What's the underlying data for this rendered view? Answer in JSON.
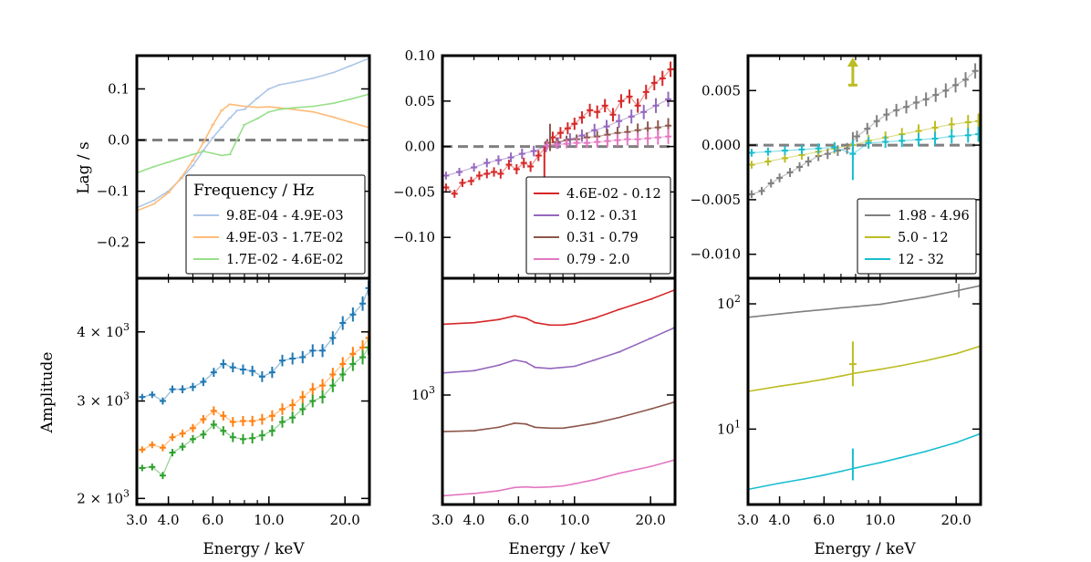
{
  "chart_data": [
    {
      "type": "line",
      "panel": "lag-low",
      "ylabel": "Lag / s",
      "ylim": [
        -0.27,
        0.165
      ],
      "xlim": [
        3.0,
        25.0
      ],
      "xscale": "log",
      "yticks": [
        -0.2,
        -0.1,
        0.0,
        0.1
      ],
      "ytick_labels": [
        "−0.2",
        "−0.1",
        "0.0",
        "0.1"
      ],
      "zero_line": true,
      "legend": {
        "title": "Frequency / Hz",
        "position": "lower-right"
      },
      "series": [
        {
          "name": "9.8E-04 - 4.9E-03",
          "color": "#aec7e8",
          "x": [
            3.0,
            3.5,
            4.0,
            4.5,
            5.0,
            5.5,
            6.0,
            6.5,
            7.0,
            7.5,
            8.0,
            9.0,
            10.0,
            11.0,
            12.5,
            15.0,
            18.0,
            21.0,
            25.0
          ],
          "y": [
            -0.132,
            -0.118,
            -0.1,
            -0.075,
            -0.05,
            -0.02,
            0.005,
            0.025,
            0.043,
            0.058,
            0.06,
            0.082,
            0.1,
            0.108,
            0.113,
            0.121,
            0.132,
            0.145,
            0.16
          ]
        },
        {
          "name": "4.9E-03 - 1.7E-02",
          "color": "#ffbb78",
          "x": [
            3.0,
            3.5,
            4.0,
            4.5,
            5.0,
            5.5,
            6.0,
            6.5,
            7.0,
            7.5,
            8.0,
            9.0,
            10.0,
            11.0,
            12.5,
            15.0,
            18.0,
            21.0,
            25.0
          ],
          "y": [
            -0.138,
            -0.125,
            -0.103,
            -0.073,
            -0.04,
            -0.005,
            0.03,
            0.058,
            0.07,
            0.068,
            0.066,
            0.064,
            0.065,
            0.063,
            0.06,
            0.055,
            0.045,
            0.035,
            0.024
          ]
        },
        {
          "name": "1.7E-02 - 4.6E-02",
          "color": "#98df8a",
          "x": [
            3.0,
            3.5,
            4.0,
            4.5,
            5.0,
            5.5,
            6.0,
            6.5,
            7.0,
            7.5,
            8.0,
            9.0,
            10.0,
            11.0,
            12.5,
            15.0,
            18.0,
            21.0,
            25.0
          ],
          "y": [
            -0.064,
            -0.052,
            -0.043,
            -0.035,
            -0.028,
            -0.022,
            -0.026,
            -0.03,
            -0.028,
            0.002,
            0.03,
            0.042,
            0.055,
            0.06,
            0.063,
            0.066,
            0.072,
            0.08,
            0.09
          ]
        }
      ]
    },
    {
      "type": "scatter",
      "panel": "lag-mid",
      "ylim": [
        -0.145,
        0.1
      ],
      "xlim": [
        3.0,
        25.0
      ],
      "xscale": "log",
      "yticks": [
        -0.1,
        -0.05,
        0.0,
        0.05,
        0.1
      ],
      "ytick_labels": [
        "−0.10",
        "−0.05",
        "0.00",
        "0.05",
        "0.10"
      ],
      "zero_line": true,
      "legend": {
        "position": "lower-right"
      },
      "series": [
        {
          "name": "4.6E-02 - 0.12",
          "color": "#d62728",
          "x": [
            3.1,
            3.35,
            3.6,
            3.9,
            4.2,
            4.5,
            4.8,
            5.1,
            5.5,
            5.9,
            6.3,
            6.7,
            7.2,
            7.7,
            8.2,
            8.8,
            9.4,
            10.0,
            10.7,
            11.5,
            12.3,
            13.2,
            14.2,
            15.3,
            16.5,
            17.8,
            19.2,
            20.7,
            22.3,
            24.0
          ],
          "y": [
            -0.045,
            -0.052,
            -0.04,
            -0.038,
            -0.032,
            -0.03,
            -0.028,
            -0.03,
            -0.02,
            -0.025,
            -0.018,
            -0.022,
            -0.01,
            0.0,
            0.01,
            0.015,
            0.02,
            0.025,
            0.032,
            0.04,
            0.038,
            0.045,
            0.035,
            0.05,
            0.055,
            0.045,
            0.06,
            0.07,
            0.075,
            0.085
          ]
        },
        {
          "name": "0.12 - 0.31",
          "color": "#9467bd",
          "x": [
            3.1,
            3.5,
            4.0,
            4.5,
            5.0,
            5.6,
            6.2,
            6.9,
            7.7,
            8.6,
            9.6,
            10.7,
            12.0,
            13.4,
            15.0,
            16.8,
            18.8,
            21.0,
            23.5
          ],
          "y": [
            -0.032,
            -0.028,
            -0.023,
            -0.018,
            -0.015,
            -0.012,
            -0.008,
            -0.005,
            0.0,
            0.004,
            0.008,
            0.012,
            0.018,
            0.022,
            0.028,
            0.033,
            0.038,
            0.045,
            0.052
          ]
        },
        {
          "name": "0.31 - 0.79",
          "color": "#8c564b",
          "x": [
            7.8,
            8.5,
            9.3,
            10.2,
            11.2,
            12.3,
            13.5,
            14.8,
            16.2,
            17.8,
            19.5,
            21.4,
            23.5
          ],
          "y": [
            0.004,
            0.005,
            0.007,
            0.008,
            0.01,
            0.011,
            0.013,
            0.015,
            0.016,
            0.018,
            0.02,
            0.021,
            0.023
          ]
        },
        {
          "name": "0.79 - 2.0",
          "color": "#e377c2",
          "x": [
            7.8,
            8.5,
            9.3,
            10.2,
            11.2,
            12.3,
            13.5,
            14.8,
            16.2,
            17.8,
            19.5,
            21.4,
            23.5
          ],
          "y": [
            0.001,
            0.002,
            0.003,
            0.004,
            0.004,
            0.005,
            0.006,
            0.007,
            0.008,
            0.008,
            0.009,
            0.01,
            0.011
          ]
        }
      ]
    },
    {
      "type": "scatter",
      "panel": "lag-high",
      "ylim": [
        -0.0122,
        0.0082
      ],
      "xlim": [
        3.0,
        25.0
      ],
      "xscale": "log",
      "yticks": [
        -0.01,
        -0.005,
        0.0,
        0.005
      ],
      "ytick_labels": [
        "−0.010",
        "−0.005",
        "0.000",
        "0.005"
      ],
      "zero_line": true,
      "legend": {
        "position": "lower-right"
      },
      "upper_limit_arrow": {
        "x": 7.8,
        "y": 0.0055,
        "color": "#bcbd22"
      },
      "series": [
        {
          "name": "1.98 - 4.96",
          "color": "#7f7f7f",
          "x": [
            3.1,
            3.4,
            3.7,
            4.0,
            4.4,
            4.8,
            5.2,
            5.7,
            6.2,
            6.8,
            7.4,
            8.1,
            8.9,
            9.7,
            10.6,
            11.6,
            12.7,
            13.9,
            15.2,
            16.6,
            18.2,
            19.9,
            21.8,
            23.8
          ],
          "y": [
            -0.0045,
            -0.0042,
            -0.0035,
            -0.003,
            -0.0025,
            -0.002,
            -0.0015,
            -0.001,
            -0.0008,
            -0.0005,
            -0.0003,
            0.0008,
            0.0015,
            0.0022,
            0.0028,
            0.0032,
            0.0035,
            0.0039,
            0.0042,
            0.0046,
            0.005,
            0.0055,
            0.006,
            0.0068
          ]
        },
        {
          "name": "5.0 - 12",
          "color": "#bcbd22",
          "x": [
            3.1,
            3.6,
            4.2,
            4.9,
            5.7,
            6.6,
            7.8,
            9.0,
            10.5,
            12.2,
            14.2,
            16.5,
            19.2,
            22.3,
            24.5
          ],
          "y": [
            -0.0018,
            -0.0015,
            -0.0012,
            -0.0009,
            -0.0006,
            -0.0003,
            0.0,
            0.0004,
            0.0007,
            0.001,
            0.0013,
            0.0016,
            0.0019,
            0.0021,
            0.0022
          ]
        },
        {
          "name": "12 - 32",
          "color": "#17becf",
          "x": [
            3.1,
            3.6,
            4.2,
            4.9,
            5.7,
            6.6,
            7.8,
            9.0,
            10.5,
            12.2,
            14.2,
            16.5,
            19.2,
            22.3,
            24.5
          ],
          "y": [
            -0.0007,
            -0.0006,
            -0.0005,
            -0.0004,
            -0.0003,
            -0.0002,
            -0.0008,
            0.0002,
            0.0003,
            0.0004,
            0.0005,
            0.0006,
            0.0008,
            0.0009,
            0.001
          ]
        }
      ]
    },
    {
      "type": "scatter",
      "panel": "amp-low",
      "ylabel": "Amplitude",
      "xlabel": "Energy / keV",
      "yscale": "log",
      "ylim": [
        1950,
        5000
      ],
      "xlim": [
        3.0,
        25.0
      ],
      "xscale": "log",
      "xticks": [
        3.0,
        4.0,
        6.0,
        10.0,
        20.0
      ],
      "xtick_labels": [
        "3.0",
        "4.0",
        "6.0",
        "10.0",
        "20.0"
      ],
      "yticks": [
        2000,
        3000,
        4000
      ],
      "ytick_labels": [
        {
          "m": "2",
          "e": "3"
        },
        {
          "m": "3",
          "e": "3"
        },
        {
          "m": "4",
          "e": "3"
        }
      ],
      "series": [
        {
          "color": "#1f77b4",
          "x": [
            3.15,
            3.45,
            3.8,
            4.15,
            4.55,
            5.0,
            5.5,
            6.05,
            6.6,
            7.2,
            7.9,
            8.6,
            9.4,
            10.3,
            11.3,
            12.4,
            13.6,
            14.9,
            16.3,
            17.9,
            19.6,
            21.5,
            23.5,
            24.8
          ],
          "y": [
            3050,
            3080,
            3000,
            3150,
            3150,
            3180,
            3250,
            3380,
            3500,
            3450,
            3420,
            3400,
            3320,
            3380,
            3550,
            3580,
            3600,
            3700,
            3700,
            3900,
            4150,
            4300,
            4500,
            4800
          ]
        },
        {
          "color": "#ff7f0e",
          "x": [
            3.15,
            3.45,
            3.8,
            4.15,
            4.55,
            5.0,
            5.5,
            6.05,
            6.6,
            7.2,
            7.9,
            8.6,
            9.4,
            10.3,
            11.3,
            12.4,
            13.6,
            14.9,
            16.3,
            17.9,
            19.6,
            21.5,
            23.5,
            24.8
          ],
          "y": [
            2450,
            2500,
            2470,
            2580,
            2620,
            2680,
            2780,
            2880,
            2820,
            2750,
            2760,
            2760,
            2780,
            2820,
            2900,
            2950,
            3050,
            3150,
            3200,
            3350,
            3500,
            3650,
            3750,
            3900
          ]
        },
        {
          "color": "#2ca02c",
          "x": [
            3.15,
            3.45,
            3.8,
            4.15,
            4.55,
            5.0,
            5.5,
            6.05,
            6.6,
            7.2,
            7.9,
            8.6,
            9.4,
            10.3,
            11.3,
            12.4,
            13.6,
            14.9,
            16.3,
            17.9,
            19.6,
            21.5,
            23.5,
            24.8
          ],
          "y": [
            2270,
            2280,
            2200,
            2420,
            2480,
            2560,
            2610,
            2720,
            2650,
            2580,
            2560,
            2570,
            2600,
            2650,
            2750,
            2800,
            2900,
            3000,
            3050,
            3200,
            3350,
            3500,
            3600,
            3750
          ]
        }
      ]
    },
    {
      "type": "line",
      "panel": "amp-mid",
      "xlabel": "Energy / keV",
      "yscale": "log",
      "ylim": [
        440,
        2400
      ],
      "xlim": [
        3.0,
        25.0
      ],
      "xscale": "log",
      "xticks": [
        3.0,
        4.0,
        6.0,
        10.0,
        20.0
      ],
      "xtick_labels": [
        "3.0",
        "4.0",
        "6.0",
        "10.0",
        "20.0"
      ],
      "yticks": [
        1000
      ],
      "ytick_labels": [
        {
          "m": "",
          "e": "3"
        }
      ],
      "series": [
        {
          "color": "#d62728",
          "x": [
            3.0,
            4.0,
            5.0,
            5.8,
            6.4,
            7.0,
            8.0,
            9.0,
            10.0,
            12.0,
            15.0,
            20.0,
            25.0
          ],
          "y": [
            1700,
            1720,
            1760,
            1810,
            1780,
            1720,
            1690,
            1690,
            1710,
            1780,
            1900,
            2050,
            2200
          ]
        },
        {
          "color": "#9467bd",
          "x": [
            3.0,
            4.0,
            5.0,
            5.8,
            6.4,
            7.0,
            8.0,
            9.0,
            10.0,
            12.0,
            15.0,
            20.0,
            25.0
          ],
          "y": [
            1180,
            1200,
            1250,
            1300,
            1280,
            1230,
            1220,
            1230,
            1240,
            1300,
            1380,
            1530,
            1660
          ]
        },
        {
          "color": "#8c564b",
          "x": [
            3.0,
            4.0,
            5.0,
            5.8,
            6.4,
            7.0,
            8.0,
            9.0,
            10.0,
            12.0,
            15.0,
            20.0,
            25.0
          ],
          "y": [
            760,
            765,
            785,
            810,
            805,
            785,
            780,
            780,
            790,
            810,
            845,
            900,
            950
          ]
        },
        {
          "color": "#e377c2",
          "x": [
            3.0,
            4.0,
            5.0,
            5.8,
            6.4,
            7.0,
            8.0,
            9.0,
            10.0,
            12.0,
            15.0,
            20.0,
            25.0
          ],
          "y": [
            470,
            478,
            488,
            500,
            502,
            500,
            502,
            506,
            514,
            530,
            556,
            585,
            615
          ]
        }
      ]
    },
    {
      "type": "line",
      "panel": "amp-high",
      "xlabel": "Energy / keV",
      "yscale": "log",
      "ylim": [
        2.5,
        160
      ],
      "xlim": [
        3.0,
        25.0
      ],
      "xscale": "log",
      "xticks": [
        3.0,
        4.0,
        6.0,
        10.0,
        20.0
      ],
      "xtick_labels": [
        "3.0",
        "4.0",
        "6.0",
        "10.0",
        "20.0"
      ],
      "yticks": [
        10,
        100
      ],
      "ytick_labels": [
        {
          "m": "",
          "e": "1"
        },
        {
          "m": "",
          "e": "2"
        }
      ],
      "series": [
        {
          "color": "#7f7f7f",
          "x": [
            3.0,
            4.0,
            5.0,
            6.0,
            7.0,
            8.0,
            10.0,
            12.0,
            15.0,
            20.0,
            25.0
          ],
          "y": [
            78,
            83,
            87,
            90,
            93,
            95,
            99,
            105,
            113,
            127,
            140
          ]
        },
        {
          "color": "#bcbd22",
          "x": [
            3.0,
            4.0,
            5.0,
            6.0,
            7.0,
            8.0,
            10.0,
            12.0,
            15.0,
            20.0,
            25.0
          ],
          "y": [
            20,
            22,
            23.5,
            25,
            26.5,
            28,
            30,
            32,
            35,
            40,
            46
          ]
        },
        {
          "color": "#17becf",
          "x": [
            3.0,
            4.0,
            5.0,
            6.0,
            7.0,
            8.0,
            10.0,
            12.0,
            15.0,
            20.0,
            25.0
          ],
          "y": [
            3.3,
            3.7,
            4.0,
            4.3,
            4.6,
            4.9,
            5.4,
            5.9,
            6.6,
            7.8,
            9.2
          ]
        }
      ]
    }
  ]
}
